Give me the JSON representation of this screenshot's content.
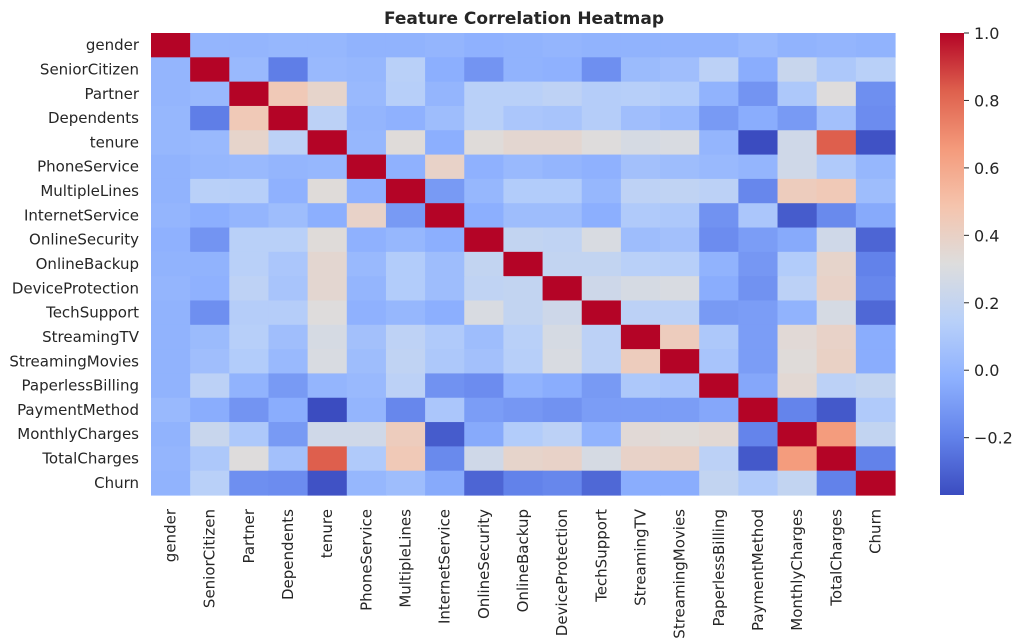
{
  "chart_data": {
    "type": "heatmap",
    "title": "Feature Correlation Heatmap",
    "xlabel": "",
    "ylabel": "",
    "colormap": "coolwarm",
    "vmin": -0.37,
    "vmax": 1.0,
    "colorbar_ticks": [
      1.0,
      0.8,
      0.6,
      0.4,
      0.2,
      0.0,
      -0.2
    ],
    "colorbar_tick_labels": [
      "1.0",
      "0.8",
      "0.6",
      "0.4",
      "0.2",
      "0.0",
      "−0.2"
    ],
    "labels": [
      "gender",
      "SeniorCitizen",
      "Partner",
      "Dependents",
      "tenure",
      "PhoneService",
      "MultipleLines",
      "InternetService",
      "OnlineSecurity",
      "OnlineBackup",
      "DeviceProtection",
      "TechSupport",
      "StreamingTV",
      "StreamingMovies",
      "PaperlessBilling",
      "PaymentMethod",
      "MonthlyCharges",
      "TotalCharges",
      "Churn"
    ],
    "matrix": [
      [
        1.0,
        0.0,
        0.0,
        0.01,
        0.01,
        -0.01,
        -0.01,
        0.0,
        -0.02,
        -0.01,
        0.0,
        -0.01,
        -0.01,
        -0.01,
        -0.01,
        0.02,
        -0.01,
        0.0,
        -0.01
      ],
      [
        0.0,
        1.0,
        0.02,
        -0.21,
        0.02,
        0.01,
        0.15,
        -0.03,
        -0.13,
        -0.01,
        -0.02,
        -0.15,
        0.03,
        0.05,
        0.16,
        -0.04,
        0.22,
        0.1,
        0.15
      ],
      [
        0.0,
        0.02,
        1.0,
        0.45,
        0.38,
        0.02,
        0.14,
        0.0,
        0.15,
        0.15,
        0.17,
        0.13,
        0.14,
        0.12,
        -0.01,
        -0.13,
        0.1,
        0.32,
        -0.15
      ],
      [
        0.01,
        -0.21,
        0.45,
        1.0,
        0.16,
        0.0,
        -0.02,
        0.04,
        0.15,
        0.09,
        0.08,
        0.13,
        0.05,
        0.02,
        -0.11,
        -0.04,
        -0.11,
        0.06,
        -0.16
      ],
      [
        0.01,
        0.02,
        0.38,
        0.16,
        1.0,
        0.01,
        0.33,
        -0.03,
        0.33,
        0.36,
        0.36,
        0.32,
        0.28,
        0.29,
        0.0,
        -0.37,
        0.25,
        0.83,
        -0.35
      ],
      [
        -0.01,
        0.01,
        0.02,
        0.0,
        0.01,
        1.0,
        -0.02,
        0.39,
        -0.02,
        0.02,
        0.0,
        -0.02,
        0.06,
        0.04,
        0.02,
        -0.0,
        0.25,
        0.11,
        0.01
      ],
      [
        -0.01,
        0.15,
        0.14,
        -0.02,
        0.33,
        -0.02,
        1.0,
        -0.11,
        0.01,
        0.12,
        0.12,
        0.01,
        0.17,
        0.18,
        0.16,
        -0.18,
        0.43,
        0.45,
        0.04
      ],
      [
        0.0,
        -0.03,
        0.0,
        0.04,
        -0.03,
        0.39,
        -0.11,
        1.0,
        -0.03,
        0.04,
        0.04,
        -0.03,
        0.11,
        0.1,
        -0.14,
        0.09,
        -0.32,
        -0.17,
        -0.05
      ],
      [
        -0.02,
        -0.13,
        0.15,
        0.15,
        0.33,
        -0.02,
        0.01,
        -0.03,
        1.0,
        0.19,
        0.18,
        0.29,
        0.04,
        0.06,
        -0.16,
        -0.1,
        -0.05,
        0.25,
        -0.29
      ],
      [
        -0.01,
        -0.01,
        0.15,
        0.09,
        0.36,
        0.02,
        0.12,
        0.04,
        0.19,
        1.0,
        0.19,
        0.19,
        0.15,
        0.14,
        -0.01,
        -0.12,
        0.12,
        0.38,
        -0.2
      ],
      [
        0.0,
        -0.02,
        0.17,
        0.08,
        0.36,
        0.0,
        0.12,
        0.04,
        0.18,
        0.19,
        1.0,
        0.24,
        0.28,
        0.29,
        -0.04,
        -0.14,
        0.16,
        0.39,
        -0.18
      ],
      [
        -0.01,
        -0.15,
        0.13,
        0.13,
        0.32,
        -0.02,
        0.01,
        -0.03,
        0.29,
        0.19,
        0.24,
        1.0,
        0.16,
        0.16,
        -0.11,
        -0.1,
        -0.01,
        0.28,
        -0.28
      ],
      [
        -0.01,
        0.03,
        0.14,
        0.05,
        0.28,
        0.06,
        0.17,
        0.11,
        0.04,
        0.15,
        0.28,
        0.16,
        1.0,
        0.43,
        0.1,
        -0.1,
        0.34,
        0.39,
        -0.04
      ],
      [
        -0.01,
        0.05,
        0.12,
        0.02,
        0.29,
        0.04,
        0.18,
        0.1,
        0.06,
        0.14,
        0.29,
        0.16,
        0.43,
        1.0,
        0.08,
        -0.1,
        0.33,
        0.4,
        -0.04
      ],
      [
        -0.01,
        0.16,
        -0.01,
        -0.11,
        0.0,
        0.02,
        0.16,
        -0.14,
        -0.16,
        -0.01,
        -0.04,
        -0.11,
        0.1,
        0.08,
        1.0,
        -0.06,
        0.35,
        0.16,
        0.19
      ],
      [
        0.02,
        -0.04,
        -0.13,
        -0.04,
        -0.37,
        -0.0,
        -0.18,
        0.09,
        -0.1,
        -0.12,
        -0.14,
        -0.1,
        -0.1,
        -0.1,
        -0.06,
        1.0,
        -0.19,
        -0.33,
        0.11
      ],
      [
        -0.01,
        0.22,
        0.1,
        -0.11,
        0.25,
        0.25,
        0.43,
        -0.32,
        -0.05,
        0.12,
        0.16,
        -0.01,
        0.34,
        0.33,
        0.35,
        -0.19,
        1.0,
        0.65,
        0.19
      ],
      [
        0.0,
        0.1,
        0.32,
        0.06,
        0.83,
        0.11,
        0.45,
        -0.17,
        0.25,
        0.38,
        0.39,
        0.28,
        0.39,
        0.4,
        0.16,
        -0.33,
        0.65,
        1.0,
        -0.2
      ],
      [
        -0.01,
        0.15,
        -0.15,
        -0.16,
        -0.35,
        0.01,
        0.04,
        -0.05,
        -0.29,
        -0.2,
        -0.18,
        -0.28,
        -0.04,
        -0.04,
        0.19,
        0.11,
        0.19,
        -0.2,
        1.0
      ]
    ]
  }
}
